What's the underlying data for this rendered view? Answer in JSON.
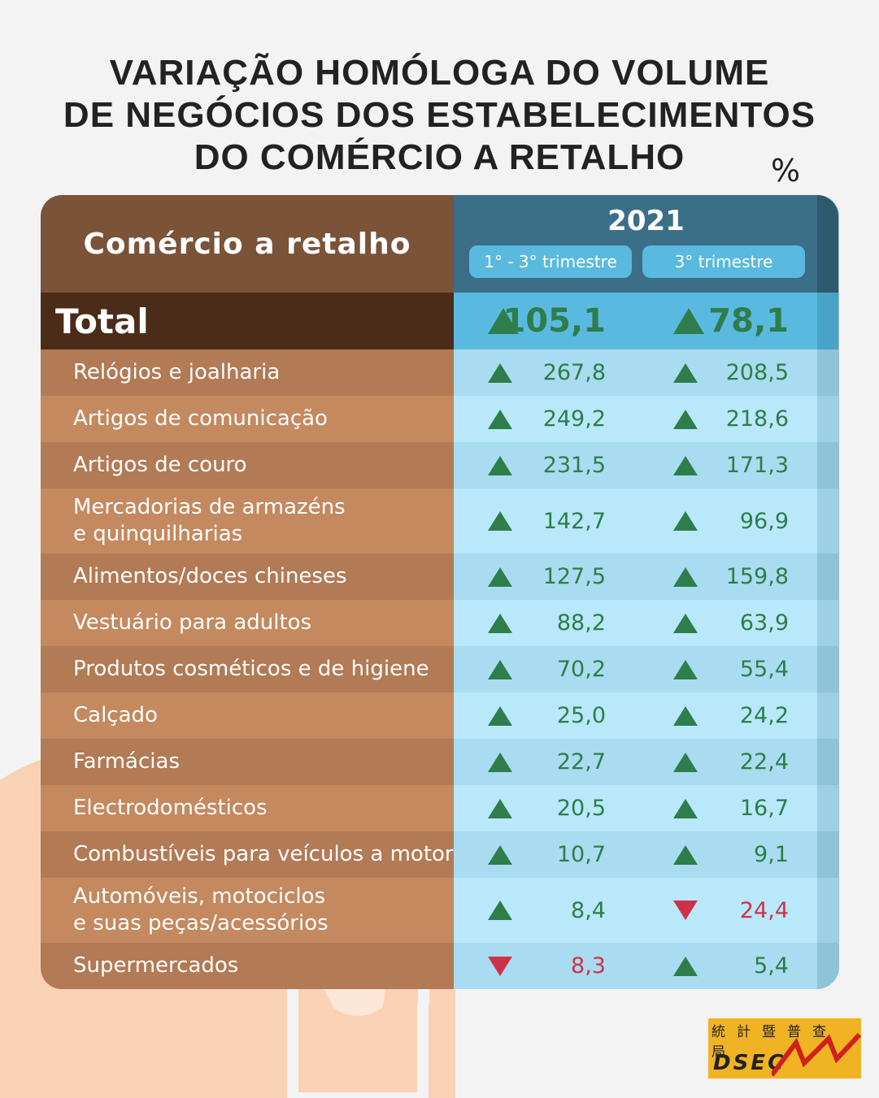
{
  "title": [
    "VARIAÇÃO HOMÓLOGA DO VOLUME",
    "DE NEGÓCIOS DOS ESTABELECIMENTOS",
    "DO COMÉRCIO A RETALHO"
  ],
  "unit": "%",
  "table": {
    "header": "Comércio a retalho",
    "year": "2021",
    "columns": [
      "1° - 3° trimestre",
      "3° trimestre"
    ],
    "total": {
      "label": "Total",
      "values": [
        "105,1",
        "78,1"
      ],
      "trend": [
        "up",
        "up"
      ]
    },
    "rows": [
      {
        "label": [
          "Relógios e joalharia"
        ],
        "values": [
          "267,8",
          "208,5"
        ],
        "trend": [
          "up",
          "up"
        ]
      },
      {
        "label": [
          "Artigos de comunicação"
        ],
        "values": [
          "249,2",
          "218,6"
        ],
        "trend": [
          "up",
          "up"
        ]
      },
      {
        "label": [
          "Artigos de couro"
        ],
        "values": [
          "231,5",
          "171,3"
        ],
        "trend": [
          "up",
          "up"
        ]
      },
      {
        "label": [
          "Mercadorias de armazéns",
          "e quinquilharias"
        ],
        "values": [
          "142,7",
          "96,9"
        ],
        "trend": [
          "up",
          "up"
        ]
      },
      {
        "label": [
          "Alimentos/doces chineses"
        ],
        "values": [
          "127,5",
          "159,8"
        ],
        "trend": [
          "up",
          "up"
        ]
      },
      {
        "label": [
          "Vestuário para adultos"
        ],
        "values": [
          "88,2",
          "63,9"
        ],
        "trend": [
          "up",
          "up"
        ]
      },
      {
        "label": [
          "Produtos cosméticos e de higiene"
        ],
        "values": [
          "70,2",
          "55,4"
        ],
        "trend": [
          "up",
          "up"
        ]
      },
      {
        "label": [
          "Calçado"
        ],
        "values": [
          "25,0",
          "24,2"
        ],
        "trend": [
          "up",
          "up"
        ]
      },
      {
        "label": [
          "Farmácias"
        ],
        "values": [
          "22,7",
          "22,4"
        ],
        "trend": [
          "up",
          "up"
        ]
      },
      {
        "label": [
          "Electrodomésticos"
        ],
        "values": [
          "20,5",
          "16,7"
        ],
        "trend": [
          "up",
          "up"
        ]
      },
      {
        "label": [
          "Combustíveis para veículos a motor"
        ],
        "values": [
          "10,7",
          "9,1"
        ],
        "trend": [
          "up",
          "up"
        ]
      },
      {
        "label": [
          "Automóveis, motociclos",
          "e suas peças/acessórios"
        ],
        "values": [
          "8,4",
          "24,4"
        ],
        "trend": [
          "up",
          "down"
        ]
      },
      {
        "label": [
          "Supermercados"
        ],
        "values": [
          "8,3",
          "5,4"
        ],
        "trend": [
          "down",
          "up"
        ]
      }
    ]
  },
  "logo": {
    "chinese": "統計暨普查局",
    "text": "DSEC"
  }
}
